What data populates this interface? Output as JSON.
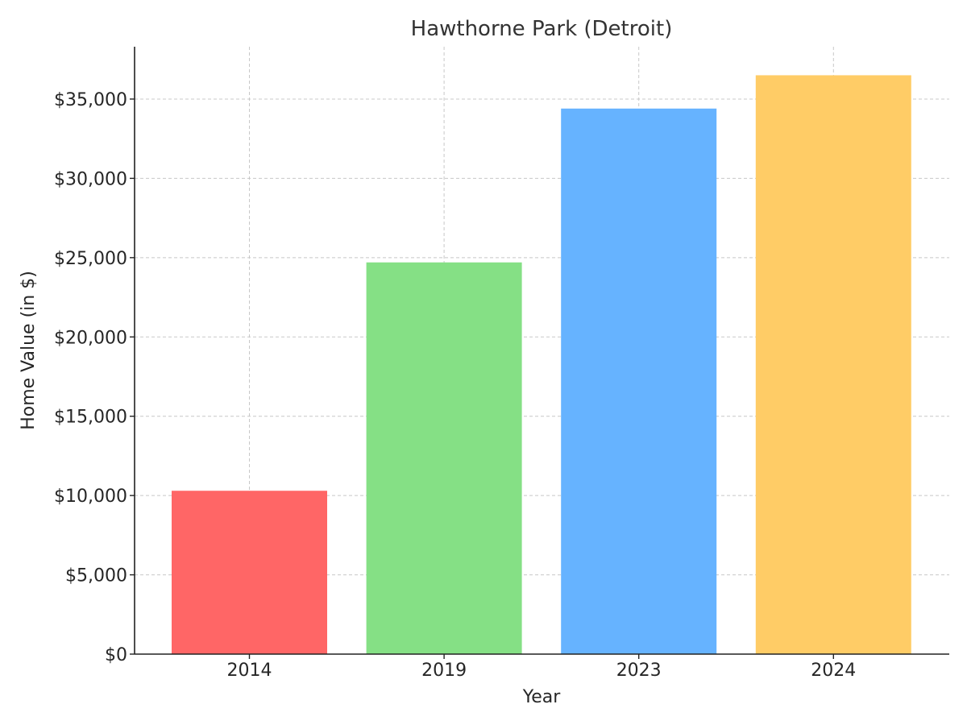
{
  "chart_data": {
    "type": "bar",
    "title": "Hawthorne Park (Detroit)",
    "xlabel": "Year",
    "ylabel": "Home Value (in $)",
    "categories": [
      "2014",
      "2019",
      "2023",
      "2024"
    ],
    "values": [
      10300,
      24700,
      34400,
      36500
    ],
    "colors": [
      "#ff6666",
      "#85e085",
      "#66b3ff",
      "#ffcc66"
    ],
    "ylim": [
      0,
      38300
    ],
    "yticks": [
      0,
      5000,
      10000,
      15000,
      20000,
      25000,
      30000,
      35000
    ],
    "ytick_labels": [
      "$0",
      "$5,000",
      "$10,000",
      "$15,000",
      "$20,000",
      "$25,000",
      "$30,000",
      "$35,000"
    ],
    "grid": true,
    "legend": "none"
  }
}
